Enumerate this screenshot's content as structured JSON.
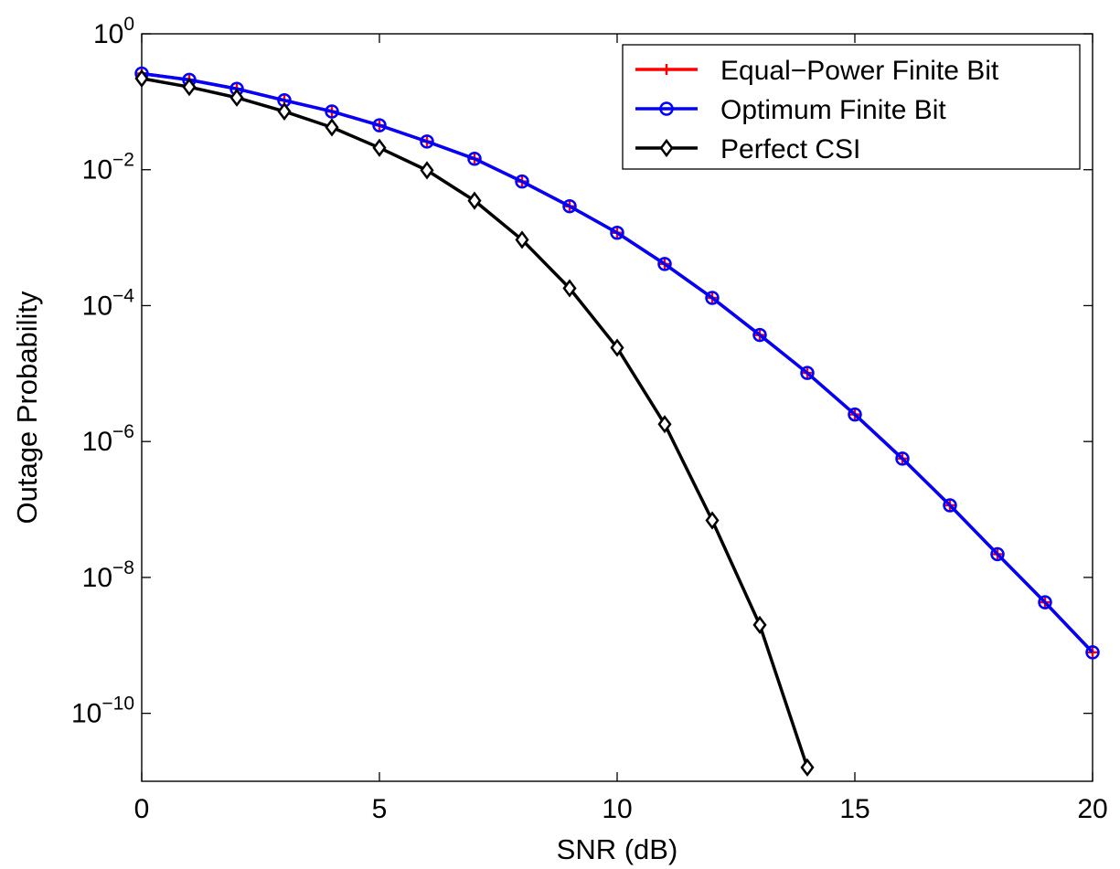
{
  "chart_data": {
    "type": "line",
    "xlabel": "SNR (dB)",
    "ylabel": "Outage Probability",
    "xlim": [
      0,
      20
    ],
    "ylim": [
      1e-11,
      1
    ],
    "yscale": "log",
    "grid": false,
    "legend_position": "top-right",
    "x_ticks": [
      "0",
      "5",
      "10",
      "15",
      "20"
    ],
    "y_ticks": [
      {
        "base": "10",
        "exp": "0"
      },
      {
        "base": "10",
        "exp": "−2"
      },
      {
        "base": "10",
        "exp": "−4"
      },
      {
        "base": "10",
        "exp": "−6"
      },
      {
        "base": "10",
        "exp": "−8"
      },
      {
        "base": "10",
        "exp": "−10"
      }
    ],
    "series": [
      {
        "name": "Equal−Power Finite Bit",
        "color": "#ff0000",
        "marker": "plus",
        "x": [
          0,
          1,
          2,
          3,
          4,
          5,
          6,
          7,
          8,
          9,
          10,
          11,
          12,
          13,
          14,
          15,
          16,
          17,
          18,
          19,
          20
        ],
        "y": [
          0.26,
          0.21,
          0.155,
          0.105,
          0.072,
          0.045,
          0.026,
          0.0145,
          0.0067,
          0.0029,
          0.00118,
          0.00041,
          0.00013,
          3.7e-05,
          1.02e-05,
          2.5e-06,
          5.6e-07,
          1.15e-07,
          2.2e-08,
          4.3e-09,
          7.9e-10
        ]
      },
      {
        "name": "Optimum Finite Bit",
        "color": "#0000ff",
        "marker": "circle",
        "x": [
          0,
          1,
          2,
          3,
          4,
          5,
          6,
          7,
          8,
          9,
          10,
          11,
          12,
          13,
          14,
          15,
          16,
          17,
          18,
          19,
          20
        ],
        "y": [
          0.26,
          0.21,
          0.155,
          0.105,
          0.072,
          0.045,
          0.026,
          0.0145,
          0.0067,
          0.0029,
          0.00118,
          0.00041,
          0.00013,
          3.7e-05,
          1.02e-05,
          2.5e-06,
          5.6e-07,
          1.15e-07,
          2.2e-08,
          4.3e-09,
          7.9e-10
        ]
      },
      {
        "name": "Perfect CSI",
        "color": "#000000",
        "marker": "diamond",
        "x": [
          0,
          1,
          2,
          3,
          4,
          5,
          6,
          7,
          8,
          9,
          10,
          11,
          12,
          13,
          14
        ],
        "y": [
          0.22,
          0.165,
          0.115,
          0.072,
          0.042,
          0.021,
          0.0098,
          0.0035,
          0.00093,
          0.00018,
          2.4e-05,
          1.8e-06,
          6.9e-08,
          2e-09,
          1.6e-11
        ]
      }
    ]
  }
}
